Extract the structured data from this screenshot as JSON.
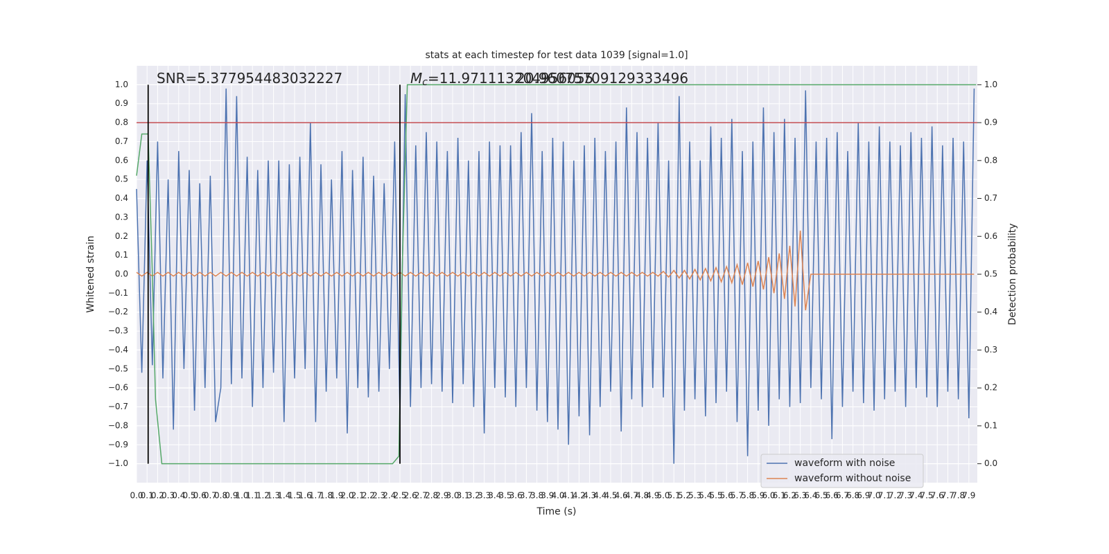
{
  "chart_data": {
    "type": "line",
    "title": "stats at each timestep for test data 1039 [signal=1.0]",
    "xlabel": "Time (s)",
    "ylabel": "Whitened strain",
    "y2label": "Detection probability",
    "annotations": [
      {
        "text": "SNR=5.377954483032227"
      },
      {
        "symbol": "M",
        "subscript": "c",
        "text": "=11.971113204956055"
      },
      {
        "text": "20.96075709129333496"
      }
    ],
    "x": [
      0,
      0.05,
      0.1,
      0.15,
      0.2,
      0.25,
      0.3,
      0.35,
      0.4,
      0.45,
      0.5,
      0.55,
      0.6,
      0.65,
      0.7,
      0.75,
      0.8,
      0.85,
      0.9,
      0.95,
      1,
      1.05,
      1.1,
      1.15,
      1.2,
      1.25,
      1.3,
      1.35,
      1.4,
      1.45,
      1.5,
      1.55,
      1.6,
      1.65,
      1.7,
      1.75,
      1.8,
      1.85,
      1.9,
      1.95,
      2,
      2.05,
      2.1,
      2.15,
      2.2,
      2.25,
      2.3,
      2.35,
      2.4,
      2.45,
      2.5,
      2.55,
      2.6,
      2.65,
      2.7,
      2.75,
      2.8,
      2.85,
      2.9,
      2.95,
      3,
      3.05,
      3.1,
      3.15,
      3.2,
      3.25,
      3.3,
      3.35,
      3.4,
      3.45,
      3.5,
      3.55,
      3.6,
      3.65,
      3.7,
      3.75,
      3.8,
      3.85,
      3.9,
      3.95,
      4,
      4.05,
      4.1,
      4.15,
      4.2,
      4.25,
      4.3,
      4.35,
      4.4,
      4.45,
      4.5,
      4.55,
      4.6,
      4.65,
      4.7,
      4.75,
      4.8,
      4.85,
      4.9,
      4.95,
      5,
      5.05,
      5.1,
      5.15,
      5.2,
      5.25,
      5.3,
      5.35,
      5.4,
      5.45,
      5.5,
      5.55,
      5.6,
      5.65,
      5.7,
      5.75,
      5.8,
      5.85,
      5.9,
      5.95,
      6,
      6.05,
      6.1,
      6.15,
      6.2,
      6.25,
      6.3,
      6.35,
      6.4,
      6.45,
      6.5,
      6.55,
      6.6,
      6.65,
      6.7,
      6.75,
      6.8,
      6.85,
      6.9,
      6.95,
      7,
      7.05,
      7.1,
      7.15,
      7.2,
      7.25,
      7.3,
      7.35,
      7.4,
      7.45,
      7.5,
      7.55,
      7.6,
      7.65,
      7.7,
      7.75,
      7.8,
      7.85,
      7.9,
      7.95
    ],
    "series": [
      {
        "name": "waveform with noise",
        "color": "#4c72b0",
        "values": [
          0.45,
          -0.52,
          0.6,
          -0.48,
          0.7,
          -0.55,
          0.5,
          -0.82,
          0.65,
          -0.5,
          0.55,
          -0.72,
          0.48,
          -0.6,
          0.52,
          -0.78,
          -0.6,
          0.98,
          -0.58,
          0.94,
          -0.55,
          0.62,
          -0.7,
          0.55,
          -0.6,
          0.6,
          -0.52,
          0.6,
          -0.78,
          0.58,
          -0.55,
          0.62,
          -0.5,
          0.8,
          -0.78,
          0.58,
          -0.62,
          0.5,
          -0.55,
          0.65,
          -0.84,
          0.55,
          -0.6,
          0.62,
          -0.65,
          0.52,
          -0.62,
          0.48,
          -0.5,
          0.7,
          -0.74,
          0.95,
          -0.7,
          0.68,
          -0.6,
          0.75,
          -0.58,
          0.7,
          -0.62,
          0.65,
          -0.68,
          0.72,
          -0.58,
          0.6,
          -0.7,
          0.65,
          -0.84,
          0.7,
          -0.6,
          0.68,
          -0.65,
          0.68,
          -0.7,
          0.75,
          -0.6,
          0.85,
          -0.72,
          0.65,
          -0.78,
          0.72,
          -0.82,
          0.7,
          -0.9,
          0.6,
          -0.75,
          0.68,
          -0.85,
          0.72,
          -0.7,
          0.65,
          -0.62,
          0.7,
          -0.83,
          0.88,
          -0.66,
          0.75,
          -0.7,
          0.72,
          -0.6,
          0.8,
          -0.65,
          0.6,
          -1.0,
          0.94,
          -0.72,
          0.7,
          -0.66,
          0.6,
          -0.75,
          0.78,
          -0.68,
          0.72,
          -0.62,
          0.82,
          -0.78,
          0.65,
          -0.96,
          0.7,
          -0.72,
          0.88,
          -0.8,
          0.75,
          -0.66,
          0.82,
          -0.7,
          0.72,
          -0.68,
          0.97,
          -0.6,
          0.7,
          -0.66,
          0.72,
          -0.87,
          0.75,
          -0.7,
          0.65,
          -0.62,
          0.8,
          -0.68,
          0.7,
          -0.72,
          0.78,
          -0.66,
          0.7,
          -0.62,
          0.68,
          -0.7,
          0.75,
          -0.6,
          0.72,
          -0.65,
          0.78,
          -0.7,
          0.68,
          -0.62,
          0.72,
          -0.66,
          0.7,
          -0.76,
          0.98
        ]
      },
      {
        "name": "waveform without noise",
        "color": "#dd8452",
        "values": [
          0.01,
          -0.01,
          0.01,
          -0.01,
          0.01,
          -0.01,
          0.01,
          -0.01,
          0.01,
          -0.01,
          0.01,
          -0.01,
          0.01,
          -0.01,
          0.01,
          -0.01,
          0.01,
          -0.01,
          0.01,
          -0.01,
          0.01,
          -0.01,
          0.01,
          -0.01,
          0.01,
          -0.01,
          0.01,
          -0.01,
          0.01,
          -0.01,
          0.01,
          -0.01,
          0.01,
          -0.01,
          0.01,
          -0.01,
          0.01,
          -0.01,
          0.01,
          -0.01,
          0.01,
          -0.01,
          0.01,
          -0.01,
          0.01,
          -0.01,
          0.01,
          -0.01,
          0.01,
          -0.01,
          0.01,
          -0.01,
          0.01,
          -0.01,
          0.01,
          -0.01,
          0.01,
          -0.01,
          0.01,
          -0.01,
          0.01,
          -0.01,
          0.01,
          -0.01,
          0.01,
          -0.01,
          0.01,
          -0.01,
          0.01,
          -0.01,
          0.01,
          -0.01,
          0.01,
          -0.01,
          0.01,
          -0.01,
          0.01,
          -0.01,
          0.01,
          -0.01,
          0.01,
          -0.01,
          0.01,
          -0.01,
          0.01,
          -0.01,
          0.01,
          -0.01,
          0.01,
          -0.01,
          0.01,
          -0.01,
          0.01,
          -0.01,
          0.01,
          -0.01,
          0.01,
          -0.01,
          0.01,
          -0.01,
          0.015,
          -0.015,
          0.02,
          -0.02,
          0.02,
          -0.025,
          0.025,
          -0.03,
          0.03,
          -0.035,
          0.035,
          -0.04,
          0.04,
          -0.045,
          0.05,
          -0.055,
          0.06,
          -0.065,
          0.07,
          -0.08,
          0.09,
          -0.1,
          0.11,
          -0.13,
          0.15,
          -0.17,
          0.23,
          -0.19,
          0,
          0,
          0,
          0,
          0,
          0,
          0,
          0,
          0,
          0,
          0,
          0,
          0,
          0,
          0,
          0,
          0,
          0,
          0,
          0,
          0,
          0,
          0,
          0,
          0,
          0,
          0,
          0,
          0,
          0,
          0,
          0
        ]
      }
    ],
    "probability": {
      "color": "#55a868",
      "axis": "y2",
      "x": [
        0,
        0.05,
        0.11,
        0.15,
        0.18,
        0.24,
        2.43,
        2.49,
        2.52,
        2.57,
        7.97
      ],
      "values": [
        0.76,
        0.87,
        0.87,
        0.5,
        0.17,
        0,
        0,
        0.02,
        0.5,
        1.0,
        1.0
      ]
    },
    "threshold": {
      "value": 0.8,
      "color": "#c44e52"
    },
    "markers_x": [
      0.11,
      2.5
    ],
    "xlim": [
      0,
      7.98
    ],
    "ylim": [
      -1.1,
      1.1
    ],
    "y2lim": [
      -0.05,
      1.05
    ],
    "xticks": [
      {
        "value": 0,
        "label": "0.0"
      },
      0.1,
      0.2,
      0.3,
      0.4,
      0.5,
      0.6,
      0.7,
      0.8,
      0.9,
      {
        "value": 1,
        "label": "1.0"
      },
      1.1,
      1.2,
      1.3,
      1.4,
      1.5,
      1.6,
      1.7,
      1.8,
      1.9,
      {
        "value": 2,
        "label": "2.0"
      },
      2.1,
      2.2,
      2.3,
      2.4,
      2.5,
      2.6,
      2.7,
      2.8,
      2.9,
      {
        "value": 3,
        "label": "3.0"
      },
      3.1,
      3.2,
      3.3,
      3.4,
      3.5,
      3.6,
      3.7,
      3.8,
      3.9,
      {
        "value": 4,
        "label": "4.0"
      },
      4.1,
      4.2,
      4.3,
      4.4,
      4.5,
      4.6,
      4.7,
      4.8,
      4.9,
      {
        "value": 5,
        "label": "5.0"
      },
      5.1,
      5.2,
      5.3,
      5.4,
      5.5,
      5.6,
      5.7,
      5.8,
      5.9,
      {
        "value": 6,
        "label": "6.0"
      },
      6.1,
      6.2,
      6.3,
      6.4,
      6.5,
      6.6,
      6.7,
      6.8,
      6.9,
      {
        "value": 7,
        "label": "7.0"
      },
      7.1,
      7.2,
      7.3,
      7.4,
      7.5,
      7.6,
      7.7,
      7.8,
      7.9
    ],
    "yticks": [
      {
        "value": -1,
        "label": "−1.0"
      },
      {
        "value": -0.9,
        "label": "−0.9"
      },
      {
        "value": -0.8,
        "label": "−0.8"
      },
      {
        "value": -0.7,
        "label": "−0.7"
      },
      {
        "value": -0.6,
        "label": "−0.6"
      },
      {
        "value": -0.5,
        "label": "−0.5"
      },
      {
        "value": -0.4,
        "label": "−0.4"
      },
      {
        "value": -0.3,
        "label": "−0.3"
      },
      {
        "value": -0.2,
        "label": "−0.2"
      },
      {
        "value": -0.1,
        "label": "−0.1"
      },
      {
        "value": 0,
        "label": "0.0"
      },
      0.1,
      0.2,
      0.3,
      0.4,
      0.5,
      0.6,
      0.7,
      0.8,
      0.9,
      {
        "value": 1,
        "label": "1.0"
      }
    ],
    "y2ticks": [
      {
        "value": 0,
        "label": "0.0"
      },
      0.1,
      0.2,
      0.3,
      0.4,
      0.5,
      0.6,
      0.7,
      0.8,
      0.9,
      {
        "value": 1,
        "label": "1.0"
      }
    ],
    "grid": true,
    "legend": "lower right"
  }
}
